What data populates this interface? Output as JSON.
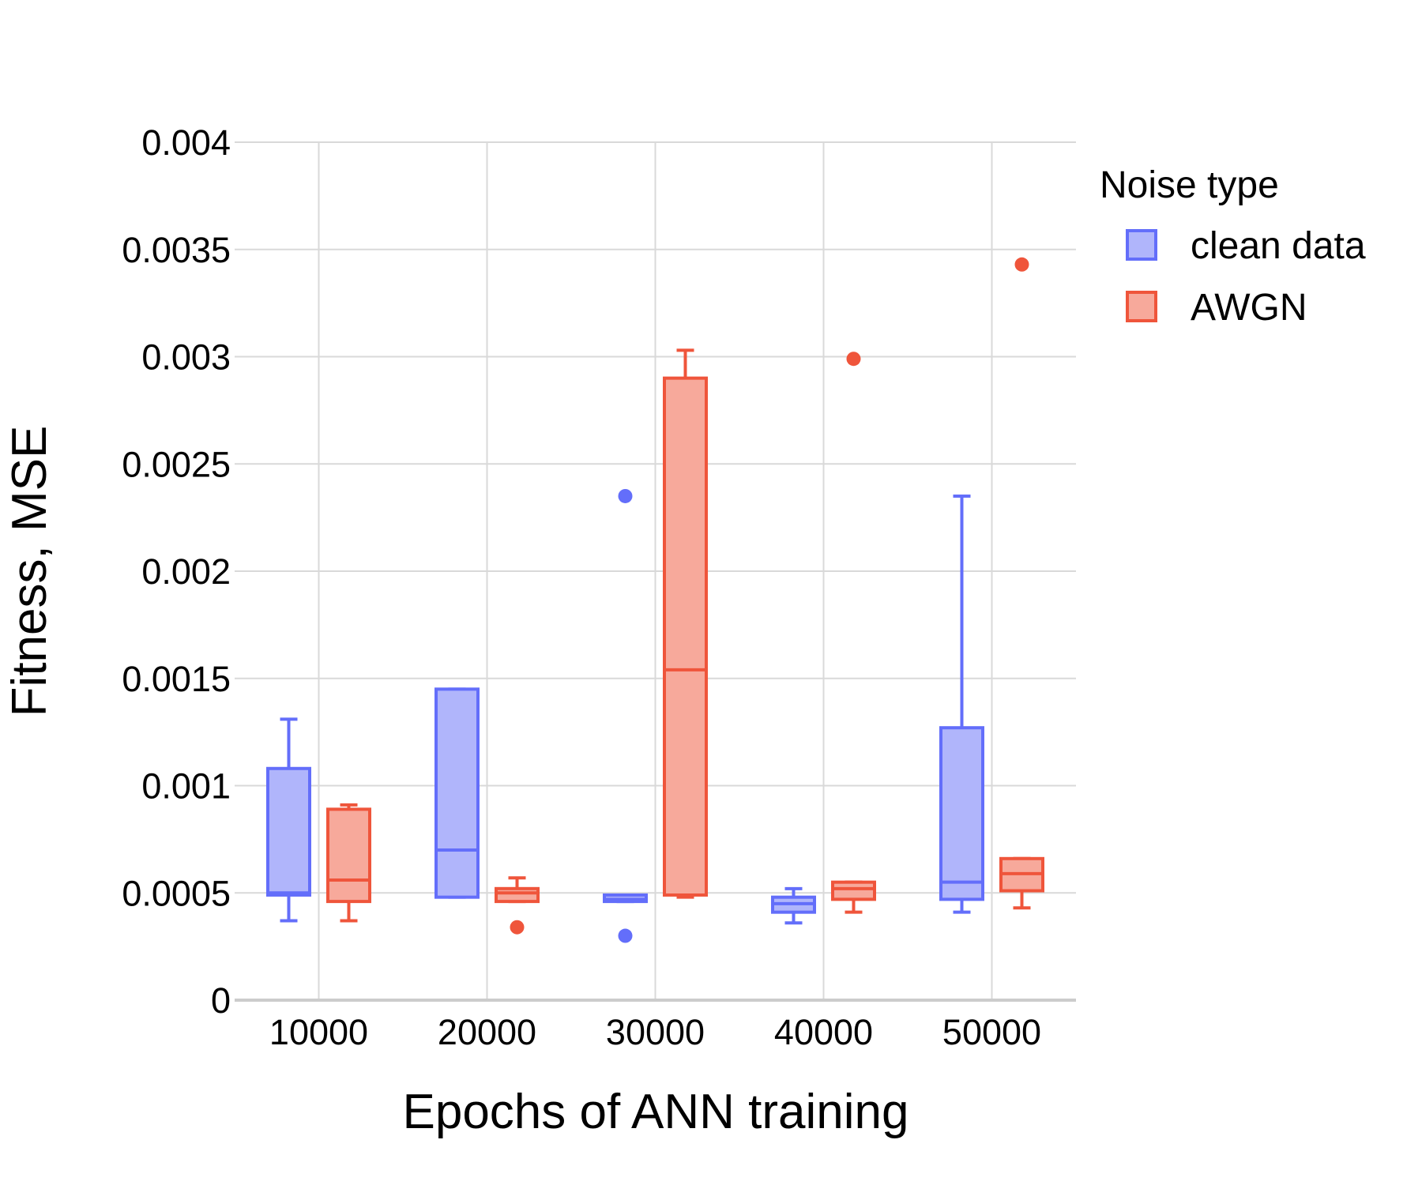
{
  "chart_data": {
    "type": "box",
    "xlabel": "Epochs of ANN training",
    "ylabel": "Fitness, MSE",
    "ylim": [
      0,
      0.004
    ],
    "yticks": [
      0,
      0.0005,
      0.001,
      0.0015,
      0.002,
      0.0025,
      0.003,
      0.0035,
      0.004
    ],
    "ytick_labels": [
      "0",
      "0.0005",
      "0.001",
      "0.0015",
      "0.002",
      "0.0025",
      "0.003",
      "0.0035",
      "0.004"
    ],
    "categories": [
      "10000",
      "20000",
      "30000",
      "40000",
      "50000"
    ],
    "grid": true,
    "legend": {
      "title": "Noise type",
      "position": "right"
    },
    "series": [
      {
        "name": "clean data",
        "color": "#636efa",
        "fill": "#b0b5fb",
        "boxes": [
          {
            "min": 0.00037,
            "q1": 0.00049,
            "median": 0.0005,
            "q3": 0.00108,
            "max": 0.00131,
            "outliers": []
          },
          {
            "min": 0.00048,
            "q1": 0.00048,
            "median": 0.0007,
            "q3": 0.00145,
            "max": 0.00145,
            "outliers": []
          },
          {
            "min": 0.00046,
            "q1": 0.00046,
            "median": 0.00047,
            "q3": 0.00049,
            "max": 0.00049,
            "outliers": [
              0.00235,
              0.0003
            ]
          },
          {
            "min": 0.00036,
            "q1": 0.00041,
            "median": 0.00045,
            "q3": 0.00048,
            "max": 0.00052,
            "outliers": []
          },
          {
            "min": 0.00041,
            "q1": 0.00047,
            "median": 0.00055,
            "q3": 0.00127,
            "max": 0.00235,
            "outliers": []
          }
        ]
      },
      {
        "name": "AWGN",
        "color": "#ef553b",
        "fill": "#f7a99b",
        "boxes": [
          {
            "min": 0.00037,
            "q1": 0.00046,
            "median": 0.00056,
            "q3": 0.00089,
            "max": 0.00091,
            "outliers": []
          },
          {
            "min": 0.00046,
            "q1": 0.00046,
            "median": 0.0005,
            "q3": 0.00052,
            "max": 0.00057,
            "outliers": [
              0.00034
            ]
          },
          {
            "min": 0.00048,
            "q1": 0.00049,
            "median": 0.00154,
            "q3": 0.0029,
            "max": 0.00303,
            "outliers": []
          },
          {
            "min": 0.00041,
            "q1": 0.00047,
            "median": 0.00052,
            "q3": 0.00055,
            "max": 0.00055,
            "outliers": [
              0.00299
            ]
          },
          {
            "min": 0.00043,
            "q1": 0.00051,
            "median": 0.00059,
            "q3": 0.00066,
            "max": 0.00066,
            "outliers": [
              0.00343
            ]
          }
        ]
      }
    ]
  }
}
